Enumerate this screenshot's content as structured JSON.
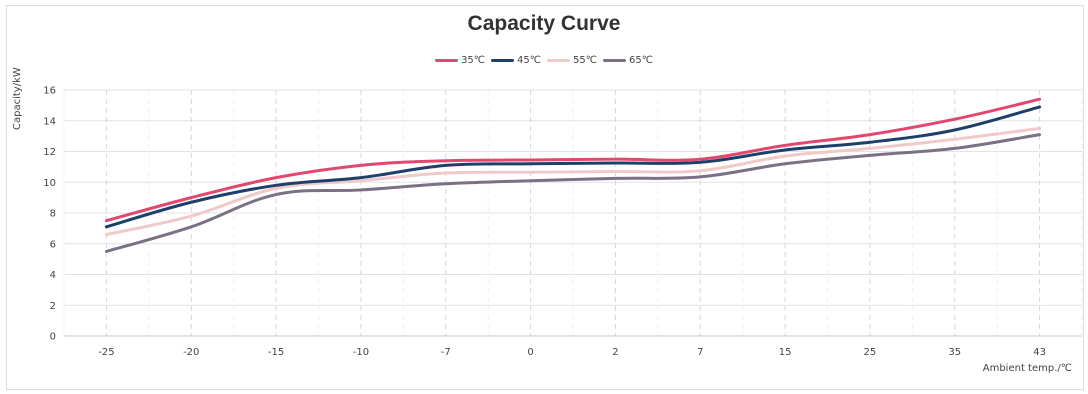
{
  "chart_data": {
    "type": "line",
    "title": "Capacity Curve",
    "xlabel": "Ambient temp./℃",
    "ylabel": "Capacity/kW",
    "categories": [
      "-25",
      "-20",
      "-15",
      "-10",
      "-7",
      "0",
      "2",
      "7",
      "15",
      "25",
      "35",
      "43"
    ],
    "ylim": [
      0,
      16
    ],
    "yticks": [
      0,
      2,
      4,
      6,
      8,
      10,
      12,
      14,
      16
    ],
    "grid": true,
    "legend_position": "top-center",
    "series": [
      {
        "name": "35℃",
        "color": "#e0486f",
        "values": [
          7.5,
          9.0,
          10.3,
          11.1,
          11.4,
          11.45,
          11.5,
          11.5,
          12.4,
          13.1,
          14.1,
          15.4
        ]
      },
      {
        "name": "45℃",
        "color": "#1f3f6b",
        "values": [
          7.1,
          8.7,
          9.8,
          10.3,
          11.1,
          11.2,
          11.25,
          11.3,
          12.1,
          12.6,
          13.4,
          14.9
        ]
      },
      {
        "name": "55℃",
        "color": "#f0c9c9",
        "values": [
          6.6,
          7.8,
          9.6,
          10.1,
          10.6,
          10.65,
          10.7,
          10.75,
          11.7,
          12.2,
          12.8,
          13.5
        ]
      },
      {
        "name": "65℃",
        "color": "#7b7185",
        "values": [
          5.5,
          7.1,
          9.2,
          9.5,
          9.9,
          10.1,
          10.25,
          10.35,
          11.2,
          11.75,
          12.2,
          13.1
        ]
      }
    ]
  }
}
